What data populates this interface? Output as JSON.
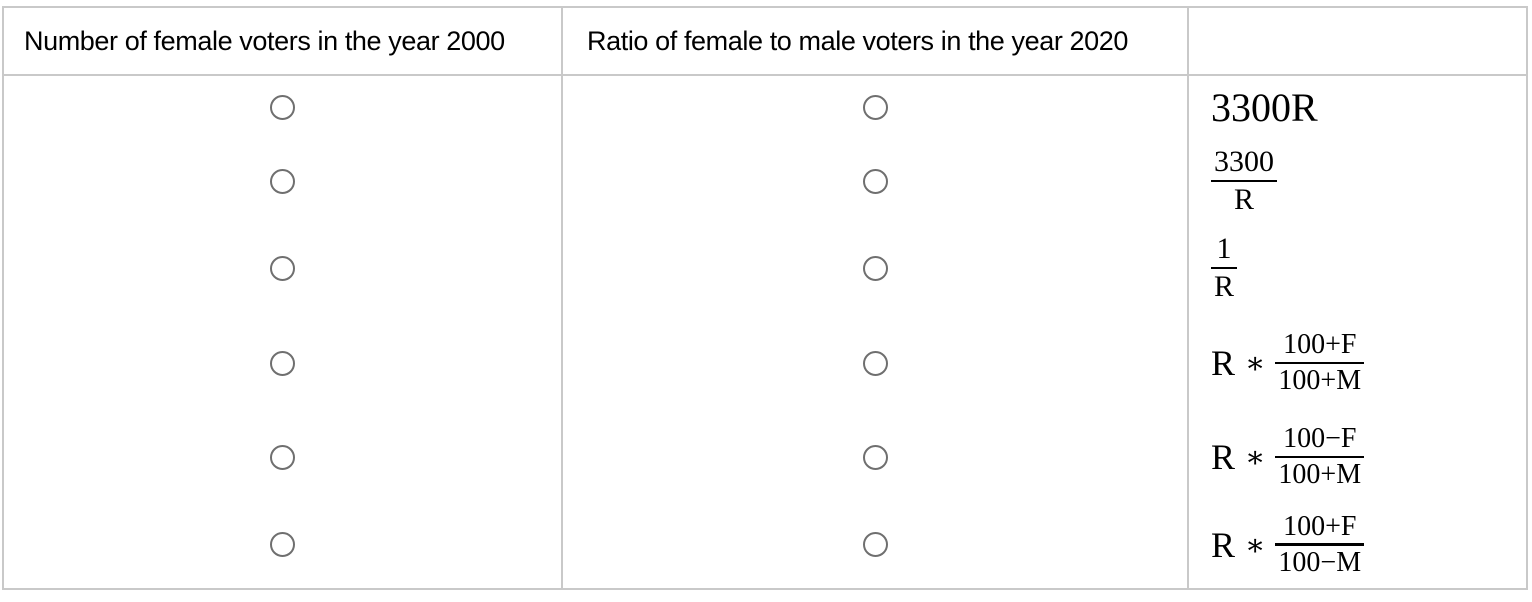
{
  "table": {
    "headers": [
      "Number of female voters in the year 2000",
      "Ratio of female to male voters in the year 2020",
      ""
    ],
    "rows": [
      {
        "formula": {
          "text": "3300R"
        }
      },
      {
        "formula": {
          "num": "3300",
          "den": "R"
        }
      },
      {
        "formula": {
          "num": "1",
          "den": "R"
        }
      },
      {
        "formula": {
          "lhs": "R",
          "op": "∗",
          "num": "100+F",
          "den": "100+M"
        }
      },
      {
        "formula": {
          "lhs": "R",
          "op": "∗",
          "num": "100−F",
          "den": "100+M"
        }
      },
      {
        "formula": {
          "lhs": "R",
          "op": "∗",
          "num": "100+F",
          "den": "100−M"
        }
      }
    ]
  },
  "colors": {
    "table_border": "#c9c9c9",
    "radio_border": "#6f6f6f",
    "text": "#000000",
    "background": "#ffffff"
  }
}
